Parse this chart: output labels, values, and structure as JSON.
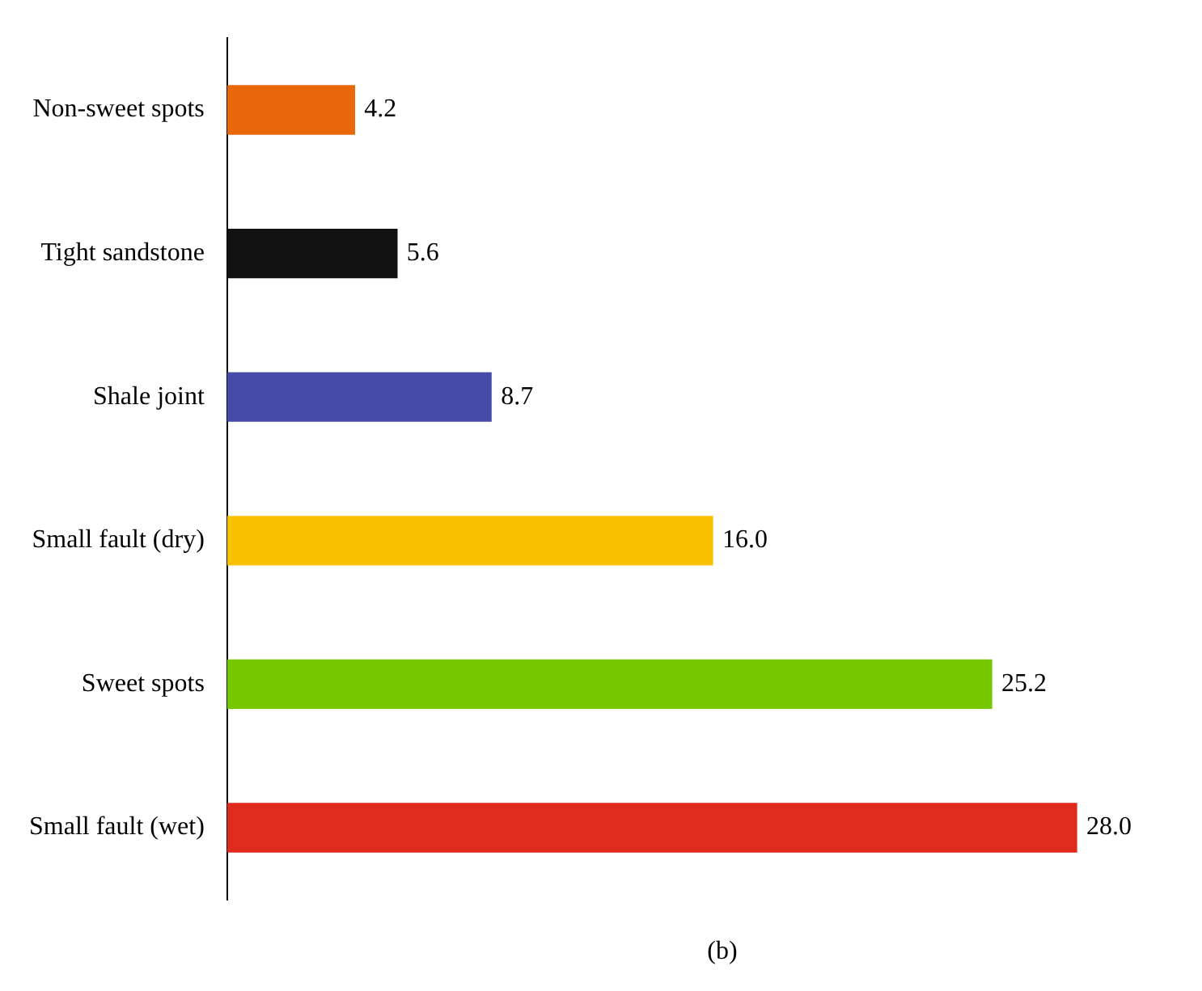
{
  "chart_data": {
    "type": "bar",
    "orientation": "horizontal",
    "categories": [
      "Non-sweet spots",
      "Tight sandstone",
      "Shale joint",
      "Small fault (dry)",
      "Sweet spots",
      "Small fault (wet)"
    ],
    "values": [
      4.2,
      5.6,
      8.7,
      16.0,
      25.2,
      28.0
    ],
    "colors": [
      "#e8680a",
      "#111111",
      "#464aa8",
      "#f9c000",
      "#76c600",
      "#de2b1e"
    ],
    "value_labels": [
      "4.2",
      "5.6",
      "8.7",
      "16.0",
      "25.2",
      "28.0"
    ],
    "tick_labels": "y",
    "grid": false,
    "annotations": [
      "(b)"
    ]
  }
}
